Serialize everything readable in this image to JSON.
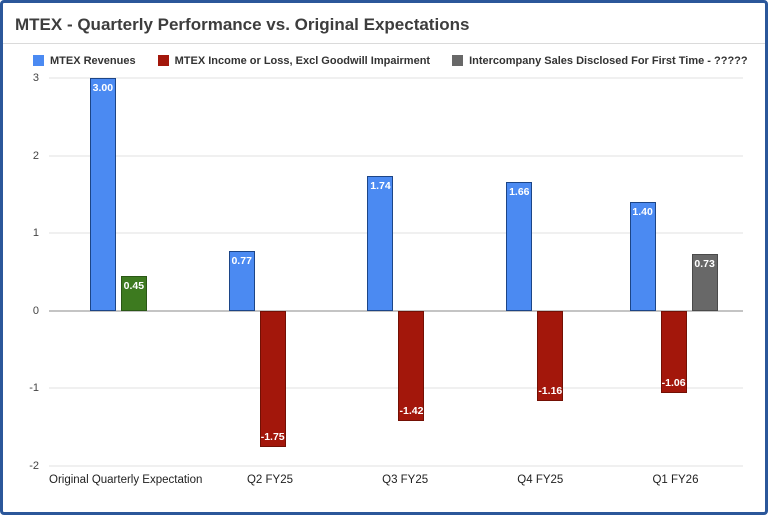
{
  "title": "MTEX - Quarterly Performance vs. Original Expectations",
  "legend": [
    {
      "label": "MTEX Revenues",
      "color": "#4b8af2"
    },
    {
      "label": "MTEX Income or Loss, Excl Goodwill Impairment",
      "color": "#a3170b"
    },
    {
      "label": "Intercompany Sales Disclosed For First Time - ?????",
      "color": "#686868"
    }
  ],
  "colors": {
    "border": "#2b579a",
    "title_text": "#3d3d3d",
    "grid": "#e0e0e0",
    "zero_line": "#8a8a8a",
    "axis_text": "#444444",
    "category_text": "#1f1f1f"
  },
  "chart_data": {
    "type": "bar",
    "title": "MTEX - Quarterly Performance vs. Original Expectations",
    "categories": [
      "Original Quarterly Expectation",
      "Q2 FY25",
      "Q3 FY25",
      "Q4 FY25",
      "Q1 FY26"
    ],
    "series": [
      {
        "name": "MTEX Revenues",
        "color": "#4b8af2",
        "values": [
          3.0,
          0.77,
          1.74,
          1.66,
          1.4
        ]
      },
      {
        "name": "MTEX Income or Loss, Excl Goodwill Impairment",
        "color": "#a3170b",
        "values": [
          0.45,
          -1.75,
          -1.42,
          -1.16,
          -1.06
        ]
      },
      {
        "name": "Intercompany Sales Disclosed For First Time - ?????",
        "color": "#686868",
        "values": [
          null,
          null,
          null,
          null,
          0.73
        ]
      }
    ],
    "ylim": [
      -2,
      3
    ],
    "yticks": [
      "3",
      "2",
      "1",
      "0",
      "-1",
      "-2"
    ],
    "grid": true,
    "legend_position": "top",
    "groups": [
      {
        "category": "Original Quarterly Expectation",
        "bars": [
          {
            "value": 3.0,
            "label": "3.00",
            "fill": "#4b8af2",
            "stroke": "#1c4587"
          },
          {
            "value": 0.45,
            "label": "0.45",
            "fill": "#3d7a1f",
            "stroke": "#2a5715"
          }
        ]
      },
      {
        "category": "Q2 FY25",
        "bars": [
          {
            "value": 0.77,
            "label": "0.77",
            "fill": "#4b8af2",
            "stroke": "#1c4587"
          },
          {
            "value": -1.75,
            "label": "-1.75",
            "fill": "#a3170b",
            "stroke": "#731004"
          }
        ]
      },
      {
        "category": "Q3 FY25",
        "bars": [
          {
            "value": 1.74,
            "label": "1.74",
            "fill": "#4b8af2",
            "stroke": "#1c4587"
          },
          {
            "value": -1.42,
            "label": "-1.42",
            "fill": "#a3170b",
            "stroke": "#731004"
          }
        ]
      },
      {
        "category": "Q4 FY25",
        "bars": [
          {
            "value": 1.66,
            "label": "1.66",
            "fill": "#4b8af2",
            "stroke": "#1c4587"
          },
          {
            "value": -1.16,
            "label": "-1.16",
            "fill": "#a3170b",
            "stroke": "#731004"
          }
        ]
      },
      {
        "category": "Q1 FY26",
        "bars": [
          {
            "value": 1.4,
            "label": "1.40",
            "fill": "#4b8af2",
            "stroke": "#1c4587"
          },
          {
            "value": -1.06,
            "label": "-1.06",
            "fill": "#a3170b",
            "stroke": "#731004"
          },
          {
            "value": 0.73,
            "label": "0.73",
            "fill": "#686868",
            "stroke": "#4a4a4a"
          }
        ]
      }
    ]
  }
}
